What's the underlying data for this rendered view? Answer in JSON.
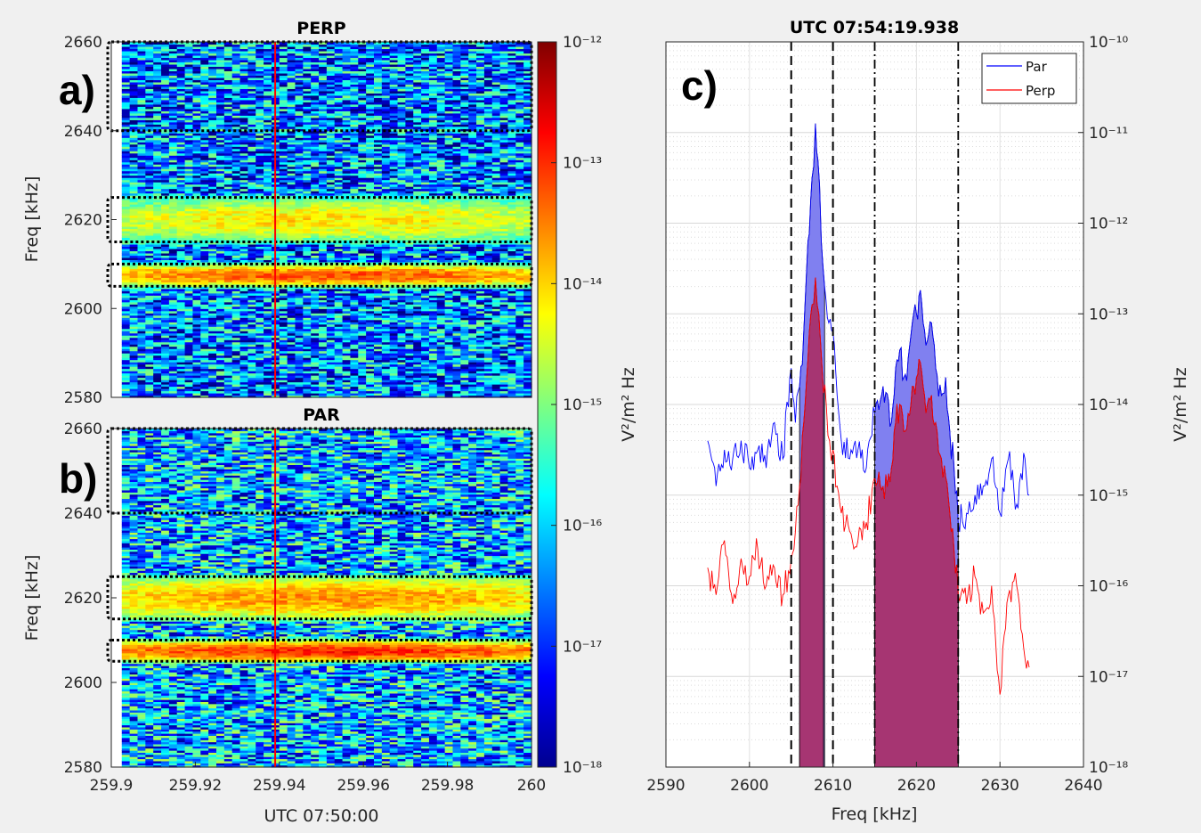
{
  "chart_data": [
    {
      "panel": "a)",
      "type": "heatmap",
      "title": "PERP",
      "ylabel": "Freq [kHz]",
      "ylim": [
        2580,
        2660
      ],
      "yticks": [
        2580,
        2600,
        2620,
        2640,
        2660
      ],
      "xlim": [
        259.9,
        260
      ],
      "xticks_hidden": true,
      "time_marker": 259.939,
      "boxes_khz": [
        [
          2605,
          2610
        ],
        [
          2615,
          2625
        ],
        [
          2640,
          2660
        ]
      ],
      "bands": [
        {
          "range": [
            2605,
            2610
          ],
          "peak_log10": -13.2
        },
        {
          "range": [
            2615,
            2625
          ],
          "peak_log10": -14.1
        }
      ],
      "background_log10": -16.5
    },
    {
      "panel": "b)",
      "type": "heatmap",
      "title": "PAR",
      "ylabel": "Freq [kHz]",
      "xlabel": "UTC 07:50:00",
      "ylim": [
        2580,
        2660
      ],
      "yticks": [
        2580,
        2600,
        2620,
        2640,
        2660
      ],
      "xlim": [
        259.9,
        260
      ],
      "xticks": [
        "259.9",
        "259.92",
        "259.94",
        "259.96",
        "259.98",
        "260"
      ],
      "time_marker": 259.939,
      "boxes_khz": [
        [
          2605,
          2610
        ],
        [
          2615,
          2625
        ],
        [
          2640,
          2660
        ]
      ],
      "bands": [
        {
          "range": [
            2605,
            2610
          ],
          "peak_log10": -12.9
        },
        {
          "range": [
            2615,
            2625
          ],
          "peak_log10": -13.6
        }
      ],
      "background_log10": -16.2
    },
    {
      "panel": "colorbar",
      "type": "heatmap",
      "colorbar_label": "V²/m² Hz",
      "colorbar_ticks": [
        "10⁻¹²",
        "10⁻¹³",
        "10⁻¹⁴",
        "10⁻¹⁵",
        "10⁻¹⁶",
        "10⁻¹⁷",
        "10⁻¹⁸"
      ],
      "clim_log10": [
        -18,
        -12
      ],
      "colormap": "jet"
    },
    {
      "panel": "c)",
      "type": "line",
      "title": "UTC  07:54:19.938",
      "xlabel": "Freq [kHz]",
      "ylabel": "V²/m² Hz",
      "xlim": [
        2590,
        2640
      ],
      "xticks": [
        "2590",
        "2600",
        "2610",
        "2620",
        "2630",
        "2640"
      ],
      "ylim_log10": [
        -18,
        -10
      ],
      "yticks": [
        "10⁻¹⁰",
        "10⁻¹¹",
        "10⁻¹²",
        "10⁻¹³",
        "10⁻¹⁴",
        "10⁻¹⁵",
        "10⁻¹⁶",
        "10⁻¹⁷",
        "10⁻¹⁸"
      ],
      "yscale": "log",
      "grid": true,
      "legend": {
        "position": "top-right",
        "entries": [
          "Par",
          "Perp"
        ]
      },
      "dashed_lines_khz": [
        2605,
        2610
      ],
      "dashdot_lines_khz": [
        2615,
        2625
      ],
      "series": [
        {
          "name": "Par",
          "color": "#0000ff",
          "fill": "#8080f0",
          "points": [
            [
              2595.0,
              -14.4
            ],
            [
              2596.0,
              -14.9
            ],
            [
              2597.0,
              -14.5
            ],
            [
              2598.0,
              -14.6
            ],
            [
              2599.0,
              -14.4
            ],
            [
              2600.0,
              -14.7
            ],
            [
              2601.0,
              -14.5
            ],
            [
              2602.0,
              -14.7
            ],
            [
              2603.0,
              -14.2
            ],
            [
              2604.0,
              -14.6
            ],
            [
              2605.0,
              -13.6
            ],
            [
              2605.5,
              -14.2
            ],
            [
              2606.0,
              -13.8
            ],
            [
              2606.5,
              -13.2
            ],
            [
              2607.0,
              -12.2
            ],
            [
              2607.5,
              -11.5
            ],
            [
              2607.9,
              -10.9
            ],
            [
              2608.2,
              -11.3
            ],
            [
              2608.6,
              -12.2
            ],
            [
              2609.0,
              -12.7
            ],
            [
              2609.5,
              -13.1
            ],
            [
              2610.0,
              -13.2
            ],
            [
              2610.5,
              -13.9
            ],
            [
              2611.0,
              -14.4
            ],
            [
              2612.0,
              -14.6
            ],
            [
              2613.0,
              -14.5
            ],
            [
              2614.0,
              -14.7
            ],
            [
              2615.0,
              -14.1
            ],
            [
              2616.0,
              -13.8
            ],
            [
              2617.0,
              -14.2
            ],
            [
              2617.5,
              -13.6
            ],
            [
              2618.0,
              -13.4
            ],
            [
              2618.5,
              -13.7
            ],
            [
              2619.0,
              -13.5
            ],
            [
              2619.5,
              -13.1
            ],
            [
              2620.0,
              -13.0
            ],
            [
              2620.3,
              -12.8
            ],
            [
              2620.8,
              -13.1
            ],
            [
              2621.3,
              -13.3
            ],
            [
              2621.8,
              -13.1
            ],
            [
              2622.3,
              -13.6
            ],
            [
              2623.0,
              -13.9
            ],
            [
              2623.5,
              -13.7
            ],
            [
              2624.0,
              -14.3
            ],
            [
              2624.5,
              -14.7
            ],
            [
              2625.0,
              -15.3
            ],
            [
              2626.0,
              -15.2
            ],
            [
              2627.0,
              -15.0
            ],
            [
              2628.0,
              -14.9
            ],
            [
              2629.0,
              -14.6
            ],
            [
              2630.0,
              -15.2
            ],
            [
              2631.0,
              -14.6
            ],
            [
              2632.0,
              -15.1
            ],
            [
              2633.0,
              -14.6
            ],
            [
              2633.5,
              -15.0
            ]
          ]
        },
        {
          "name": "Perp",
          "color": "#ff0000",
          "fill": "#a8306a",
          "points": [
            [
              2595.0,
              -15.8
            ],
            [
              2596.0,
              -16.1
            ],
            [
              2597.0,
              -15.5
            ],
            [
              2598.0,
              -16.2
            ],
            [
              2599.0,
              -15.7
            ],
            [
              2600.0,
              -15.9
            ],
            [
              2601.0,
              -15.6
            ],
            [
              2602.0,
              -16.0
            ],
            [
              2603.0,
              -15.8
            ],
            [
              2604.0,
              -16.1
            ],
            [
              2605.0,
              -15.7
            ],
            [
              2605.5,
              -15.4
            ],
            [
              2606.0,
              -14.9
            ],
            [
              2606.5,
              -14.2
            ],
            [
              2607.0,
              -13.5
            ],
            [
              2607.5,
              -12.9
            ],
            [
              2607.9,
              -12.6
            ],
            [
              2608.3,
              -13.0
            ],
            [
              2608.7,
              -13.6
            ],
            [
              2609.2,
              -14.0
            ],
            [
              2609.6,
              -14.4
            ],
            [
              2610.0,
              -14.5
            ],
            [
              2610.5,
              -14.9
            ],
            [
              2611.0,
              -15.2
            ],
            [
              2612.0,
              -15.4
            ],
            [
              2613.0,
              -15.5
            ],
            [
              2614.0,
              -15.3
            ],
            [
              2615.0,
              -14.8
            ],
            [
              2616.0,
              -14.9
            ],
            [
              2617.0,
              -14.7
            ],
            [
              2617.5,
              -14.2
            ],
            [
              2618.0,
              -14.0
            ],
            [
              2618.5,
              -14.3
            ],
            [
              2619.0,
              -14.1
            ],
            [
              2619.5,
              -13.8
            ],
            [
              2620.0,
              -13.7
            ],
            [
              2620.3,
              -13.5
            ],
            [
              2620.8,
              -13.8
            ],
            [
              2621.3,
              -14.0
            ],
            [
              2621.8,
              -13.9
            ],
            [
              2622.3,
              -14.2
            ],
            [
              2623.0,
              -14.6
            ],
            [
              2623.5,
              -14.8
            ],
            [
              2624.0,
              -15.2
            ],
            [
              2624.5,
              -15.6
            ],
            [
              2625.0,
              -16.1
            ],
            [
              2626.0,
              -16.2
            ],
            [
              2627.0,
              -15.9
            ],
            [
              2628.0,
              -16.3
            ],
            [
              2629.0,
              -16.0
            ],
            [
              2630.0,
              -17.2
            ],
            [
              2631.0,
              -16.1
            ],
            [
              2632.0,
              -16.0
            ],
            [
              2633.0,
              -16.8
            ],
            [
              2633.5,
              -16.9
            ]
          ]
        }
      ]
    }
  ],
  "colors": {
    "marker_line": "#ff0000",
    "background": "#f0f0f0"
  }
}
